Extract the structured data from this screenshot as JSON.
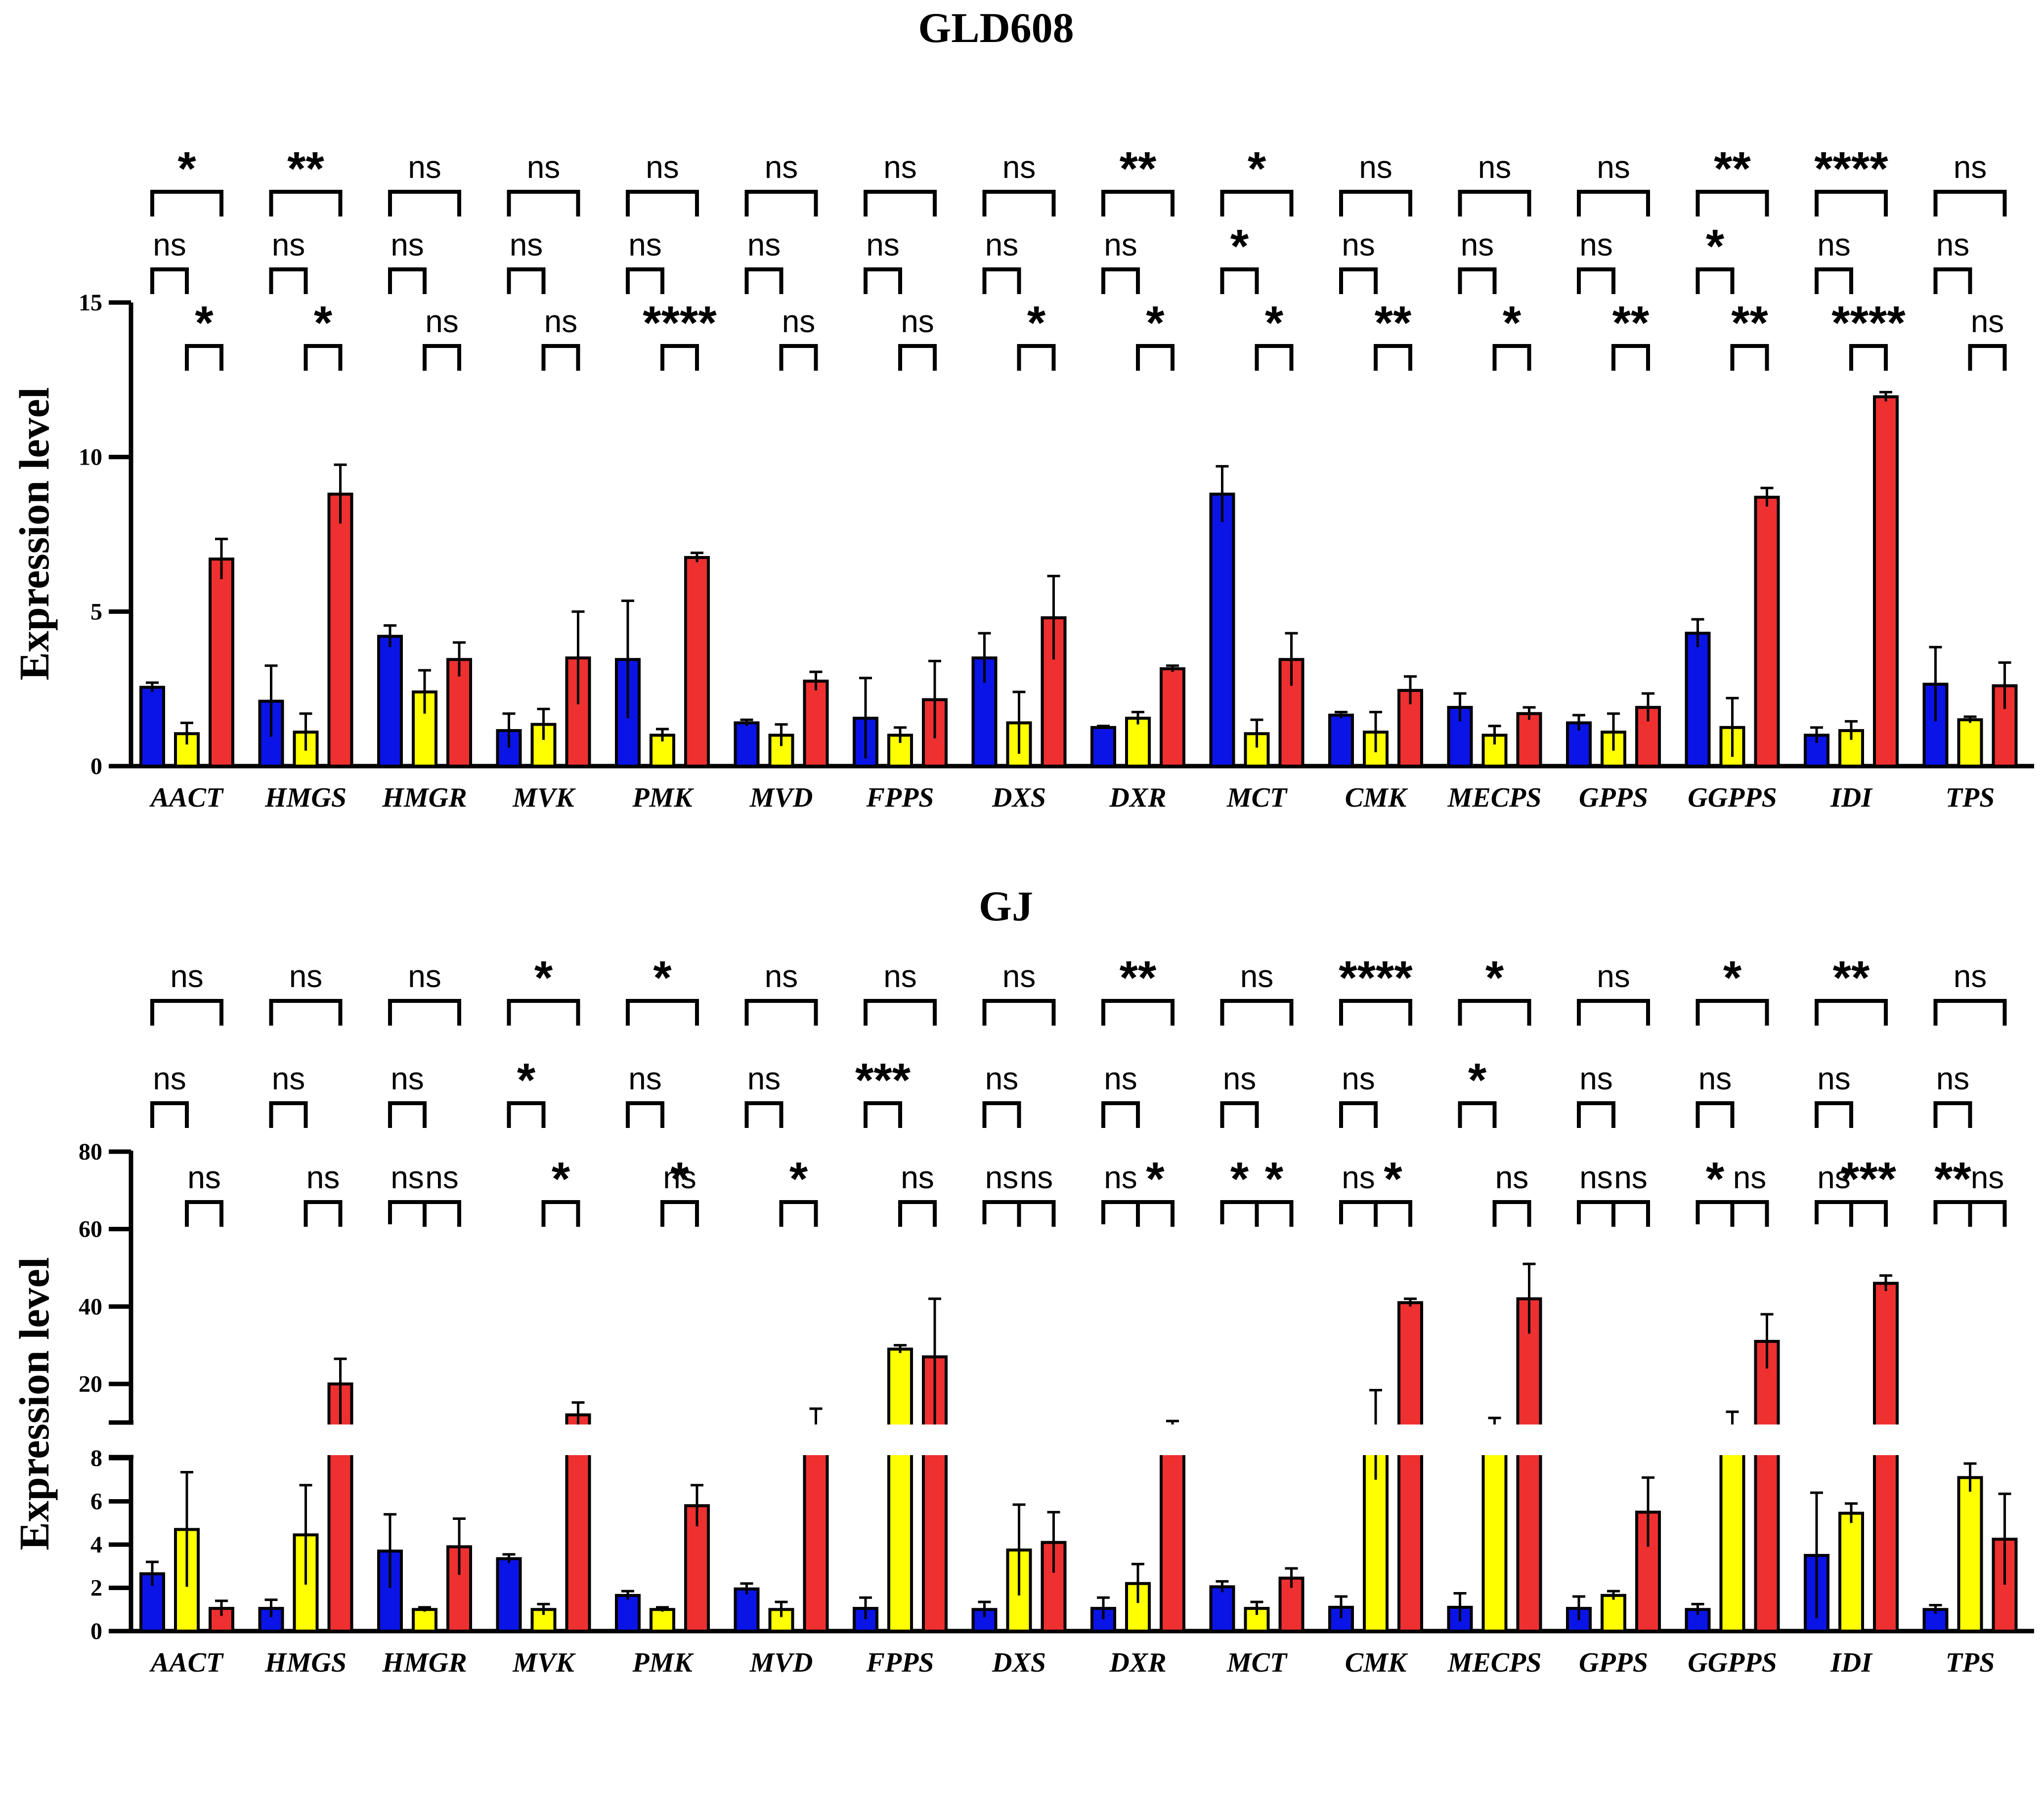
{
  "colors": {
    "blue": "#0a14e6",
    "yellow": "#ffff00",
    "red": "#ee3030",
    "ink": "#000000"
  },
  "chart_data": [
    {
      "type": "bar",
      "title": "GLD608",
      "ylabel": "Expression level",
      "xlabel": "",
      "ylim": [
        0,
        15
      ],
      "yticks": [
        "0",
        "5",
        "10",
        "15"
      ],
      "categories": [
        "AACT",
        "HMGS",
        "HMGR",
        "MVK",
        "PMK",
        "MVD",
        "FPPS",
        "DXS",
        "DXR",
        "MCT",
        "CMK",
        "MECPS",
        "GPPS",
        "GGPPS",
        "IDI",
        "TPS"
      ],
      "series": [
        {
          "name": "blue",
          "color": "#0a14e6",
          "values": [
            2.55,
            2.1,
            4.2,
            1.15,
            3.45,
            1.4,
            1.55,
            3.5,
            1.25,
            8.8,
            1.65,
            1.9,
            1.4,
            4.3,
            1.0,
            2.65
          ],
          "errors": [
            0.15,
            1.15,
            0.35,
            0.55,
            1.9,
            0.1,
            1.3,
            0.8,
            0.05,
            0.9,
            0.1,
            0.45,
            0.25,
            0.45,
            0.25,
            1.2
          ]
        },
        {
          "name": "yellow",
          "color": "#ffff00",
          "values": [
            1.05,
            1.1,
            2.4,
            1.35,
            1.0,
            1.0,
            1.0,
            1.4,
            1.55,
            1.05,
            1.1,
            1.0,
            1.1,
            1.25,
            1.15,
            1.5
          ],
          "errors": [
            0.35,
            0.6,
            0.7,
            0.5,
            0.2,
            0.35,
            0.25,
            1.0,
            0.2,
            0.45,
            0.65,
            0.3,
            0.6,
            0.95,
            0.3,
            0.1
          ]
        },
        {
          "name": "red",
          "color": "#ee3030",
          "values": [
            6.7,
            8.8,
            3.45,
            3.5,
            6.75,
            2.75,
            2.15,
            4.8,
            3.15,
            3.45,
            2.45,
            1.7,
            1.9,
            8.7,
            11.95,
            2.6
          ],
          "errors": [
            0.65,
            0.95,
            0.55,
            1.5,
            0.15,
            0.3,
            1.25,
            1.35,
            0.1,
            0.85,
            0.45,
            0.2,
            0.45,
            0.3,
            0.15,
            0.75
          ]
        }
      ],
      "significance": {
        "blue_vs_red": [
          "*",
          "**",
          "ns",
          "ns",
          "ns",
          "ns",
          "ns",
          "ns",
          "**",
          "*",
          "ns",
          "ns",
          "ns",
          "**",
          "****",
          "ns"
        ],
        "blue_vs_yellow": [
          "ns",
          "ns",
          "ns",
          "ns",
          "ns",
          "ns",
          "ns",
          "ns",
          "ns",
          "*",
          "ns",
          "ns",
          "ns",
          "*",
          "ns",
          "ns"
        ],
        "yellow_vs_red": [
          "*",
          "*",
          "ns",
          "ns",
          "****",
          "ns",
          "ns",
          "*",
          "*",
          "*",
          "**",
          "*",
          "**",
          "**",
          "****",
          "ns"
        ]
      }
    },
    {
      "type": "bar",
      "title": "GJ",
      "ylabel": "Expression level",
      "xlabel": "",
      "ylim": [
        0,
        80
      ],
      "axis_break": [
        8,
        20
      ],
      "yticks": [
        "0",
        "2",
        "4",
        "6",
        "8",
        "20",
        "40",
        "60",
        "80"
      ],
      "categories": [
        "AACT",
        "HMGS",
        "HMGR",
        "MVK",
        "PMK",
        "MVD",
        "FPPS",
        "DXS",
        "DXR",
        "MCT",
        "CMK",
        "MECPS",
        "GPPS",
        "GGPPS",
        "IDI",
        "TPS"
      ],
      "series": [
        {
          "name": "blue",
          "color": "#0a14e6",
          "values": [
            2.65,
            1.05,
            3.7,
            3.35,
            1.65,
            1.95,
            1.05,
            1.0,
            1.05,
            2.05,
            1.1,
            1.1,
            1.05,
            1.0,
            3.5,
            1.0
          ],
          "errors": [
            0.55,
            0.4,
            1.7,
            0.2,
            0.2,
            0.25,
            0.5,
            0.35,
            0.5,
            0.25,
            0.5,
            0.65,
            0.55,
            0.25,
            2.9,
            0.2
          ]
        },
        {
          "name": "yellow",
          "color": "#ffff00",
          "values": [
            4.7,
            4.45,
            1.0,
            1.0,
            1.0,
            1.0,
            29.0,
            3.75,
            2.2,
            1.05,
            13.0,
            12.0,
            1.65,
            13.0,
            5.45,
            7.1
          ],
          "errors": [
            2.65,
            2.3,
            0.1,
            0.25,
            0.1,
            0.35,
            1.0,
            2.1,
            0.9,
            0.3,
            6.0,
            2.5,
            0.2,
            2.5,
            0.45,
            0.65
          ]
        },
        {
          "name": "red",
          "color": "#ee3030",
          "values": [
            1.05,
            20.0,
            3.9,
            15.0,
            5.8,
            13.0,
            27.0,
            4.1,
            13.0,
            2.45,
            41.0,
            42.0,
            5.5,
            31.0,
            46.0,
            4.25
          ],
          "errors": [
            0.35,
            6.5,
            1.3,
            2.0,
            0.95,
            3.0,
            15.0,
            1.4,
            1.0,
            0.45,
            1.0,
            9.0,
            1.6,
            7.0,
            2.0,
            2.1
          ]
        }
      ],
      "significance": {
        "blue_vs_red": [
          "ns",
          "ns",
          "ns",
          "*",
          "*",
          "ns",
          "ns",
          "ns",
          "**",
          "ns",
          "****",
          "*",
          "ns",
          "*",
          "**",
          "ns"
        ],
        "blue_vs_yellow": [
          "ns",
          "ns",
          "ns",
          "*",
          "ns",
          "ns",
          "***",
          "ns",
          "ns",
          "ns",
          "ns",
          "*",
          "ns",
          "ns",
          "ns",
          "ns"
        ],
        "yellow_vs_red": [
          "ns",
          "ns",
          "ns",
          "*",
          "*",
          "*",
          "ns",
          "ns",
          "*",
          "*",
          "*",
          "ns",
          "ns",
          "ns",
          "***",
          "ns"
        ],
        "low_blue_vs_yellow": [
          "",
          "",
          "ns",
          "",
          "",
          "",
          "",
          "ns",
          "ns",
          "*",
          "ns",
          "",
          "ns",
          "*",
          "ns",
          "**"
        ],
        "low_yellow_vs_red": [
          "ns",
          "ns",
          "",
          "",
          "ns",
          "",
          "ns",
          "",
          "",
          "",
          "",
          "ns",
          "ns",
          "",
          "",
          ""
        ]
      }
    }
  ]
}
